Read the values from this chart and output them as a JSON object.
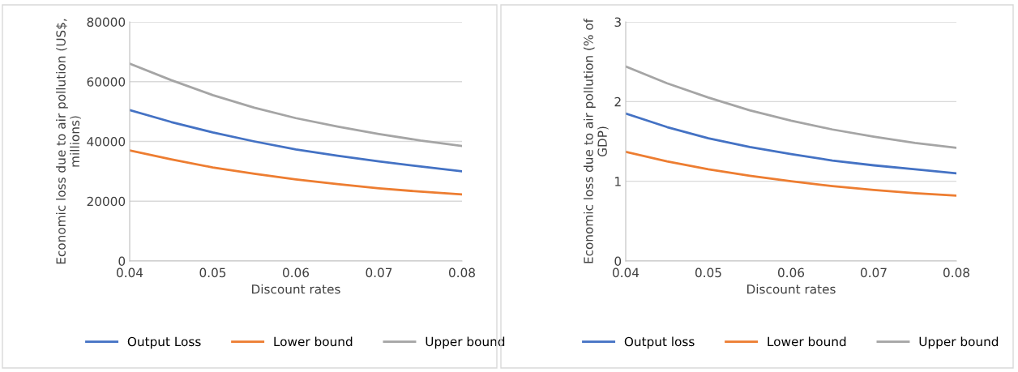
{
  "chart_data": [
    {
      "type": "line",
      "xlabel": "Discount rates",
      "ylabel": "Economic loss due to air pollution (US$,\nmillions)",
      "x": [
        0.04,
        0.045,
        0.05,
        0.055,
        0.06,
        0.065,
        0.07,
        0.075,
        0.08
      ],
      "series": [
        {
          "name": "Output Loss",
          "color": "#4472c4",
          "values": [
            50500,
            46500,
            43000,
            40000,
            37300,
            35200,
            33300,
            31600,
            30000
          ]
        },
        {
          "name": "Lower bound",
          "color": "#ed7d31",
          "values": [
            37000,
            34000,
            31300,
            29200,
            27300,
            25700,
            24300,
            23200,
            22300
          ]
        },
        {
          "name": "Upper bound",
          "color": "#a5a5a5",
          "values": [
            66000,
            60500,
            55500,
            51300,
            47800,
            45000,
            42500,
            40300,
            38500
          ]
        }
      ],
      "xlim": [
        0.04,
        0.08
      ],
      "xticks": [
        0.04,
        0.05,
        0.06,
        0.07,
        0.08
      ],
      "ylim": [
        0,
        80000
      ],
      "yticks": [
        0,
        20000,
        40000,
        60000,
        80000
      ],
      "grid": "y",
      "legend": "bottom",
      "marker": "none",
      "line_style": "solid"
    },
    {
      "type": "line",
      "xlabel": "Discount rates",
      "ylabel": "Economic loss due to air pollution (% of\nGDP)",
      "x": [
        0.04,
        0.045,
        0.05,
        0.055,
        0.06,
        0.065,
        0.07,
        0.075,
        0.08
      ],
      "series": [
        {
          "name": "Output loss",
          "color": "#4472c4",
          "values": [
            1.85,
            1.68,
            1.54,
            1.43,
            1.34,
            1.26,
            1.2,
            1.15,
            1.1
          ]
        },
        {
          "name": "Lower bound",
          "color": "#ed7d31",
          "values": [
            1.37,
            1.25,
            1.15,
            1.07,
            1.0,
            0.94,
            0.89,
            0.85,
            0.82
          ]
        },
        {
          "name": "Upper bound",
          "color": "#a5a5a5",
          "values": [
            2.44,
            2.23,
            2.05,
            1.89,
            1.76,
            1.65,
            1.56,
            1.48,
            1.42
          ]
        }
      ],
      "xlim": [
        0.04,
        0.08
      ],
      "xticks": [
        0.04,
        0.05,
        0.06,
        0.07,
        0.08
      ],
      "ylim": [
        0,
        3
      ],
      "yticks": [
        0,
        1,
        2,
        3
      ],
      "grid": "y",
      "legend": "bottom",
      "marker": "none",
      "line_style": "solid"
    }
  ]
}
